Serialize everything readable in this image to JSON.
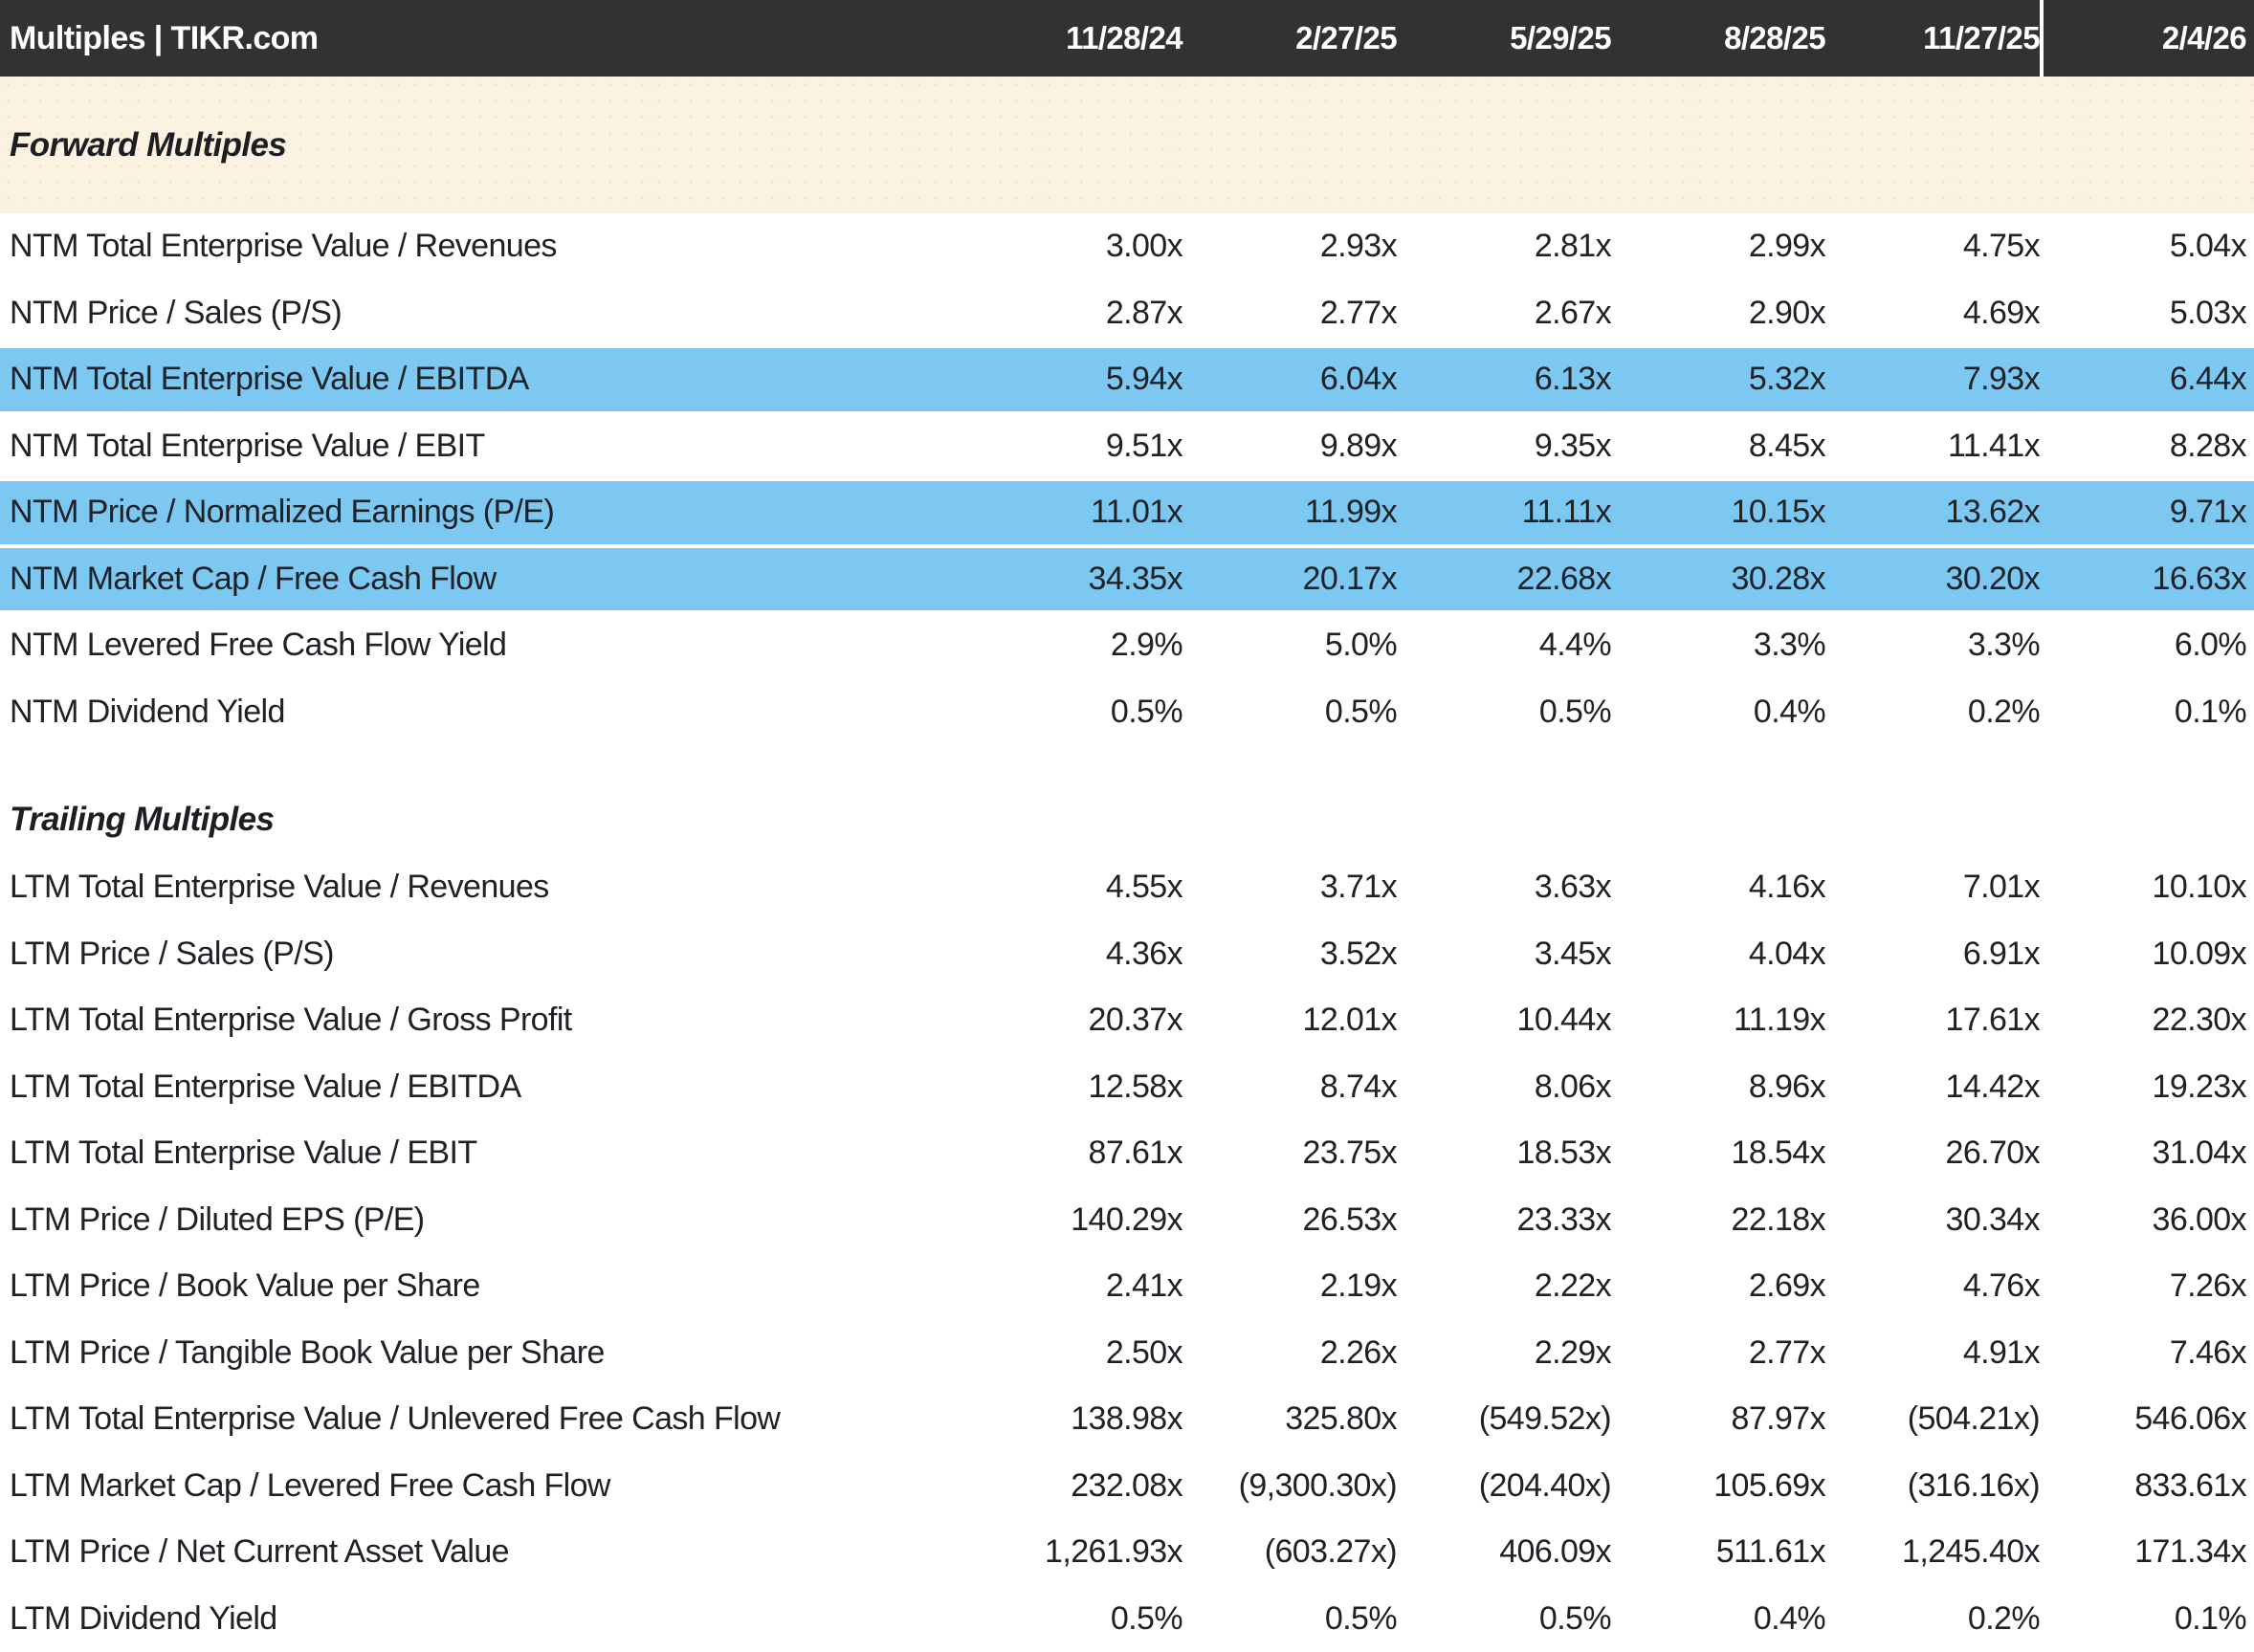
{
  "header": {
    "title": "Multiples | TIKR.com",
    "dates": [
      "11/28/24",
      "2/27/25",
      "5/29/25",
      "8/28/25",
      "11/27/25",
      "2/4/26"
    ]
  },
  "sections": [
    {
      "title": "Forward Multiples",
      "rows": [
        {
          "label": "NTM Total Enterprise Value / Revenues",
          "highlighted": false,
          "values": [
            "3.00x",
            "2.93x",
            "2.81x",
            "2.99x",
            "4.75x",
            "5.04x"
          ]
        },
        {
          "label": "NTM Price / Sales (P/S)",
          "highlighted": false,
          "values": [
            "2.87x",
            "2.77x",
            "2.67x",
            "2.90x",
            "4.69x",
            "5.03x"
          ]
        },
        {
          "label": "NTM Total Enterprise Value / EBITDA",
          "highlighted": true,
          "values": [
            "5.94x",
            "6.04x",
            "6.13x",
            "5.32x",
            "7.93x",
            "6.44x"
          ]
        },
        {
          "label": "NTM Total Enterprise Value / EBIT",
          "highlighted": false,
          "values": [
            "9.51x",
            "9.89x",
            "9.35x",
            "8.45x",
            "11.41x",
            "8.28x"
          ]
        },
        {
          "label": "NTM Price / Normalized Earnings (P/E)",
          "highlighted": true,
          "values": [
            "11.01x",
            "11.99x",
            "11.11x",
            "10.15x",
            "13.62x",
            "9.71x"
          ]
        },
        {
          "label": "NTM Market Cap / Free Cash Flow",
          "highlighted": true,
          "values": [
            "34.35x",
            "20.17x",
            "22.68x",
            "30.28x",
            "30.20x",
            "16.63x"
          ]
        },
        {
          "label": "NTM Levered Free Cash Flow Yield",
          "highlighted": false,
          "values": [
            "2.9%",
            "5.0%",
            "4.4%",
            "3.3%",
            "3.3%",
            "6.0%"
          ]
        },
        {
          "label": "NTM Dividend Yield",
          "highlighted": false,
          "values": [
            "0.5%",
            "0.5%",
            "0.5%",
            "0.4%",
            "0.2%",
            "0.1%"
          ]
        }
      ]
    },
    {
      "title": "Trailing Multiples",
      "rows": [
        {
          "label": "LTM Total Enterprise Value / Revenues",
          "highlighted": false,
          "values": [
            "4.55x",
            "3.71x",
            "3.63x",
            "4.16x",
            "7.01x",
            "10.10x"
          ]
        },
        {
          "label": "LTM Price / Sales (P/S)",
          "highlighted": false,
          "values": [
            "4.36x",
            "3.52x",
            "3.45x",
            "4.04x",
            "6.91x",
            "10.09x"
          ]
        },
        {
          "label": "LTM Total Enterprise Value / Gross Profit",
          "highlighted": false,
          "values": [
            "20.37x",
            "12.01x",
            "10.44x",
            "11.19x",
            "17.61x",
            "22.30x"
          ]
        },
        {
          "label": "LTM Total Enterprise Value / EBITDA",
          "highlighted": false,
          "values": [
            "12.58x",
            "8.74x",
            "8.06x",
            "8.96x",
            "14.42x",
            "19.23x"
          ]
        },
        {
          "label": "LTM Total Enterprise Value / EBIT",
          "highlighted": false,
          "values": [
            "87.61x",
            "23.75x",
            "18.53x",
            "18.54x",
            "26.70x",
            "31.04x"
          ]
        },
        {
          "label": "LTM Price / Diluted EPS (P/E)",
          "highlighted": false,
          "values": [
            "140.29x",
            "26.53x",
            "23.33x",
            "22.18x",
            "30.34x",
            "36.00x"
          ]
        },
        {
          "label": "LTM Price / Book Value per Share",
          "highlighted": false,
          "values": [
            "2.41x",
            "2.19x",
            "2.22x",
            "2.69x",
            "4.76x",
            "7.26x"
          ]
        },
        {
          "label": "LTM Price / Tangible Book Value per Share",
          "highlighted": false,
          "values": [
            "2.50x",
            "2.26x",
            "2.29x",
            "2.77x",
            "4.91x",
            "7.46x"
          ]
        },
        {
          "label": "LTM Total Enterprise Value / Unlevered Free Cash Flow",
          "highlighted": false,
          "values": [
            "138.98x",
            "325.80x",
            "(549.52x)",
            "87.97x",
            "(504.21x)",
            "546.06x"
          ]
        },
        {
          "label": "LTM Market Cap / Levered Free Cash Flow",
          "highlighted": false,
          "values": [
            "232.08x",
            "(9,300.30x)",
            "(204.40x)",
            "105.69x",
            "(316.16x)",
            "833.61x"
          ]
        },
        {
          "label": "LTM Price / Net Current Asset Value",
          "highlighted": false,
          "values": [
            "1,261.93x",
            "(603.27x)",
            "406.09x",
            "511.61x",
            "1,245.40x",
            "171.34x"
          ]
        },
        {
          "label": "LTM Dividend Yield",
          "highlighted": false,
          "values": [
            "0.5%",
            "0.5%",
            "0.5%",
            "0.4%",
            "0.2%",
            "0.1%"
          ]
        }
      ]
    }
  ],
  "colors": {
    "header_bg": "#323232",
    "header_text": "#ffffff",
    "header_divider": "#ffffff",
    "forward_band_bg": "#fcf2e2",
    "highlight_row_bg": "#7cc8f1",
    "row_bg": "#ffffff",
    "text": "#1f2126"
  }
}
